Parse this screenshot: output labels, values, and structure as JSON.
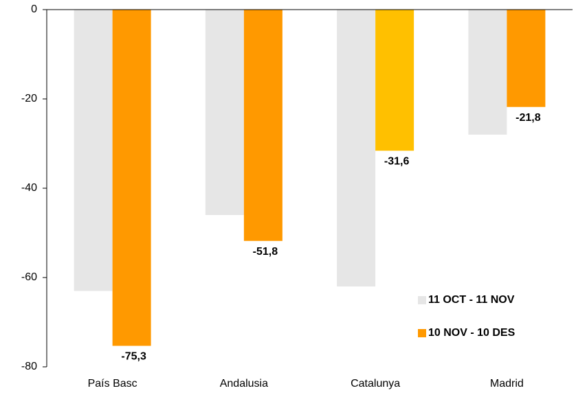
{
  "chart_data": {
    "type": "bar",
    "categories": [
      "País Basc",
      "Andalusia",
      "Catalunya",
      "Madrid"
    ],
    "series": [
      {
        "name": "11 OCT - 11 NOV",
        "color": "#e6e6e6",
        "values": [
          -63,
          -46,
          -62,
          -28
        ]
      },
      {
        "name": "10 NOV - 10 DES",
        "color": "#ff9900",
        "colors": [
          "#ff9900",
          "#ff9900",
          "#ffc000",
          "#ff9900"
        ],
        "values": [
          -75.3,
          -51.8,
          -31.6,
          -21.8
        ],
        "value_labels": [
          "-75,3",
          "-51,8",
          "-31,6",
          "-21,8"
        ]
      }
    ],
    "ylim": [
      -80,
      0
    ],
    "yticks": [
      0,
      -20,
      -40,
      -60,
      -80
    ],
    "legend": "lower right"
  }
}
